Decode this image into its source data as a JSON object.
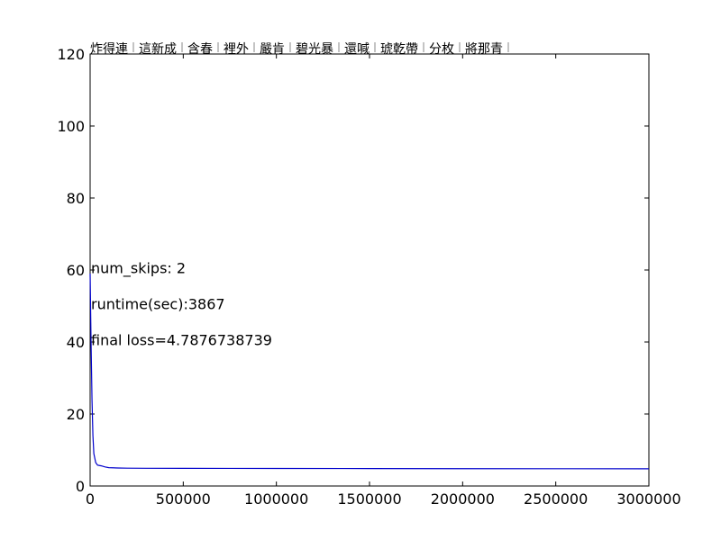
{
  "chart_data": {
    "type": "line",
    "title": "",
    "title_segments": [
      "炸得連",
      "這新成",
      "含春",
      "裡外",
      "嚴肯",
      "碧光暴",
      "還喊",
      "琥乾帶",
      "分枚",
      "將那青"
    ],
    "xlabel": "",
    "ylabel": "",
    "xlim": [
      0,
      3000000
    ],
    "ylim": [
      0,
      120
    ],
    "x_ticks": [
      0,
      500000,
      1000000,
      1500000,
      2000000,
      2500000,
      3000000
    ],
    "y_ticks": [
      0,
      20,
      40,
      60,
      80,
      100,
      120
    ],
    "x_tick_labels": [
      "0",
      "500000",
      "1000000",
      "1500000",
      "2000000",
      "2500000",
      "3000000"
    ],
    "y_tick_labels": [
      "0",
      "20",
      "40",
      "60",
      "80",
      "100",
      "120"
    ],
    "grid": false,
    "legend": "none",
    "line_color": "#0000cc",
    "annotations": [
      "num_skips: 2",
      "runtime(sec):3867",
      "final loss=4.7876738739"
    ],
    "series": [
      {
        "x": [
          0,
          5000,
          10000,
          15000,
          20000,
          30000,
          40000,
          60000,
          80000,
          100000,
          150000,
          200000,
          300000,
          500000,
          1000000,
          1500000,
          2000000,
          2500000,
          3000000
        ],
        "y": [
          59,
          40,
          24,
          14,
          9,
          6.5,
          5.8,
          5.6,
          5.3,
          5.1,
          5.0,
          4.95,
          4.92,
          4.9,
          4.87,
          4.85,
          4.82,
          4.8,
          4.79
        ]
      }
    ]
  }
}
